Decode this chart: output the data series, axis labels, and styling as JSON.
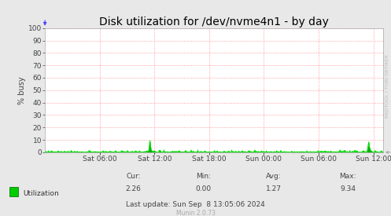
{
  "title": "Disk utilization for /dev/nvme4n1 - by day",
  "ylabel": "% busy",
  "ylim": [
    0,
    100
  ],
  "yticks": [
    0,
    10,
    20,
    30,
    40,
    50,
    60,
    70,
    80,
    90,
    100
  ],
  "xtick_labels": [
    "Sat 06:00",
    "Sat 12:00",
    "Sat 18:00",
    "Sun 00:00",
    "Sun 06:00",
    "Sun 12:00"
  ],
  "line_color": "#00e000",
  "fill_color": "#00aa00",
  "bg_color": "#e8e8e8",
  "plot_bg_color": "#ffffff",
  "grid_color": "#ff8888",
  "title_color": "#000000",
  "legend_label": "Utilization",
  "legend_color": "#00cc00",
  "cur_val": "2.26",
  "min_val": "0.00",
  "avg_val": "1.27",
  "max_val": "9.34",
  "last_update": "Last update: Sun Sep  8 13:05:06 2024",
  "munin_version": "Munin 2.0.73",
  "watermark": "RRDTOOL / TOBI OETIKER",
  "title_fontsize": 10,
  "axis_fontsize": 7,
  "tick_fontsize": 6.5,
  "footer_fontsize": 6.5,
  "watermark_fontsize": 4.5,
  "munin_fontsize": 5.5
}
